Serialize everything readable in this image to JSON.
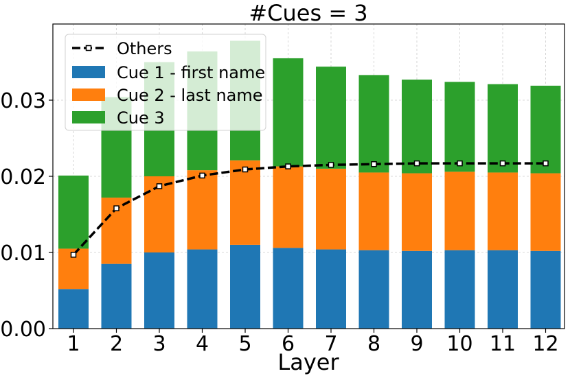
{
  "chart_data": {
    "type": "bar",
    "stacked": true,
    "title": "#Cues = 3",
    "xlabel": "Layer",
    "ylabel": "",
    "categories": [
      "1",
      "2",
      "3",
      "4",
      "5",
      "6",
      "7",
      "8",
      "9",
      "10",
      "11",
      "12"
    ],
    "ylim": [
      0,
      0.04
    ],
    "yticks": [
      "0.00",
      "0.01",
      "0.02",
      "0.03"
    ],
    "ytick_values": [
      0,
      0.01,
      0.02,
      0.03
    ],
    "grid": true,
    "legend_position": "top-left",
    "series": [
      {
        "name": "Cue 1 - first name",
        "color": "#1f77b4",
        "values": [
          0.0052,
          0.0085,
          0.01,
          0.0104,
          0.011,
          0.0106,
          0.0104,
          0.0103,
          0.0102,
          0.0103,
          0.0103,
          0.0102
        ]
      },
      {
        "name": "Cue 2 - last name",
        "color": "#ff7f0e",
        "values": [
          0.0053,
          0.0087,
          0.01,
          0.0104,
          0.0111,
          0.0107,
          0.0106,
          0.0102,
          0.0102,
          0.0103,
          0.0102,
          0.0102
        ]
      },
      {
        "name": "Cue 3",
        "color": "#2ca02c",
        "values": [
          0.0096,
          0.0132,
          0.015,
          0.0156,
          0.0157,
          0.0142,
          0.0134,
          0.0128,
          0.0123,
          0.0118,
          0.0116,
          0.0115
        ]
      }
    ],
    "line": {
      "name": "Others",
      "color": "#000000",
      "values": [
        0.0097,
        0.0158,
        0.0187,
        0.0201,
        0.0209,
        0.0213,
        0.0215,
        0.0216,
        0.0217,
        0.0217,
        0.0217,
        0.0217
      ]
    }
  }
}
